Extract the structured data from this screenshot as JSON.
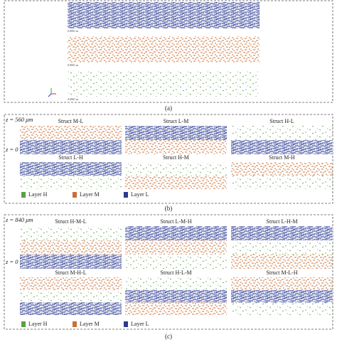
{
  "panel_a": {
    "scale_labels": [
      "0.0001 m",
      "0.0001 m",
      "0.0001 m"
    ],
    "caption": "(a)"
  },
  "panel_b": {
    "z_top": "z = 560 μm",
    "z_bottom": "z = 0",
    "structs": [
      "Struct M-L",
      "Struct L-M",
      "Struct H-L",
      "Struct L-H",
      "Struct H-M",
      "Struct M-H"
    ],
    "legend": [
      "Layer H",
      "Layer M",
      "Layer L"
    ],
    "caption": "(b)"
  },
  "panel_c": {
    "z_top": "z = 840 μm",
    "z_bottom": "z = 0",
    "structs": [
      "Struct H-M-L",
      "Struct L-M-H",
      "Struct L-H-M",
      "Struct M-H-L",
      "Struct H-L-M",
      "Struct M-L-H"
    ],
    "legend": [
      "Layer H",
      "Layer M",
      "Layer L"
    ],
    "caption": "(c)"
  }
}
